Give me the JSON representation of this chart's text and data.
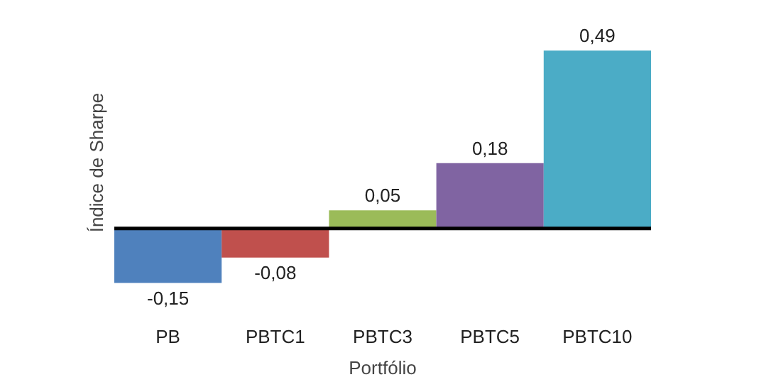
{
  "chart_data": {
    "type": "bar",
    "xlabel": "Portfólio",
    "ylabel": "Índice de Sharpe",
    "categories": [
      "PB",
      "PBTC1",
      "PBTC3",
      "PBTC5",
      "PBTC10"
    ],
    "values": [
      -0.15,
      -0.08,
      0.05,
      0.18,
      0.49
    ],
    "colors": [
      "#4f81bd",
      "#c0504d",
      "#9bbb59",
      "#8064a2",
      "#4bacc6"
    ],
    "value_labels": [
      "-0,15",
      "-0,08",
      "0,05",
      "0,18",
      "0,49"
    ],
    "ref_lines": [
      {
        "axis": "y",
        "value": 0,
        "label": null,
        "color": "#000000"
      }
    ],
    "grid": false
  }
}
